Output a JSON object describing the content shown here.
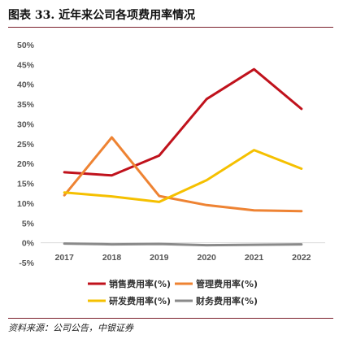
{
  "header": {
    "title": "图表 33. 近年来公司各项费用率情况"
  },
  "footer": {
    "source": "资料来源：公司公告，中银证券"
  },
  "colors": {
    "rule": "#7a1f2b"
  },
  "chart_data": {
    "type": "line",
    "title": "",
    "xlabel": "",
    "ylabel": "",
    "categories": [
      "2017",
      "2018",
      "2019",
      "2020",
      "2021",
      "2022"
    ],
    "ylim": [
      -5,
      50
    ],
    "yticks": [
      "-5%",
      "0%",
      "5%",
      "10%",
      "15%",
      "20%",
      "25%",
      "30%",
      "35%",
      "40%",
      "45%",
      "50%"
    ],
    "grid": false,
    "legend_position": "bottom",
    "series": [
      {
        "name": "销售费用率(%)",
        "color": "#c0121c",
        "values": [
          17.8,
          17.0,
          22.0,
          36.3,
          43.8,
          33.8
        ]
      },
      {
        "name": "管理费用率(%)",
        "color": "#ee8333",
        "values": [
          12.0,
          26.6,
          11.8,
          9.5,
          8.2,
          8.0
        ]
      },
      {
        "name": "研发费用率(%)",
        "color": "#f5c000",
        "values": [
          12.7,
          11.7,
          10.3,
          15.8,
          23.4,
          18.7
        ]
      },
      {
        "name": "财务费用率(%)",
        "color": "#8a8a8a",
        "values": [
          -0.2,
          -0.4,
          -0.3,
          -0.6,
          -0.5,
          -0.4
        ]
      }
    ]
  }
}
